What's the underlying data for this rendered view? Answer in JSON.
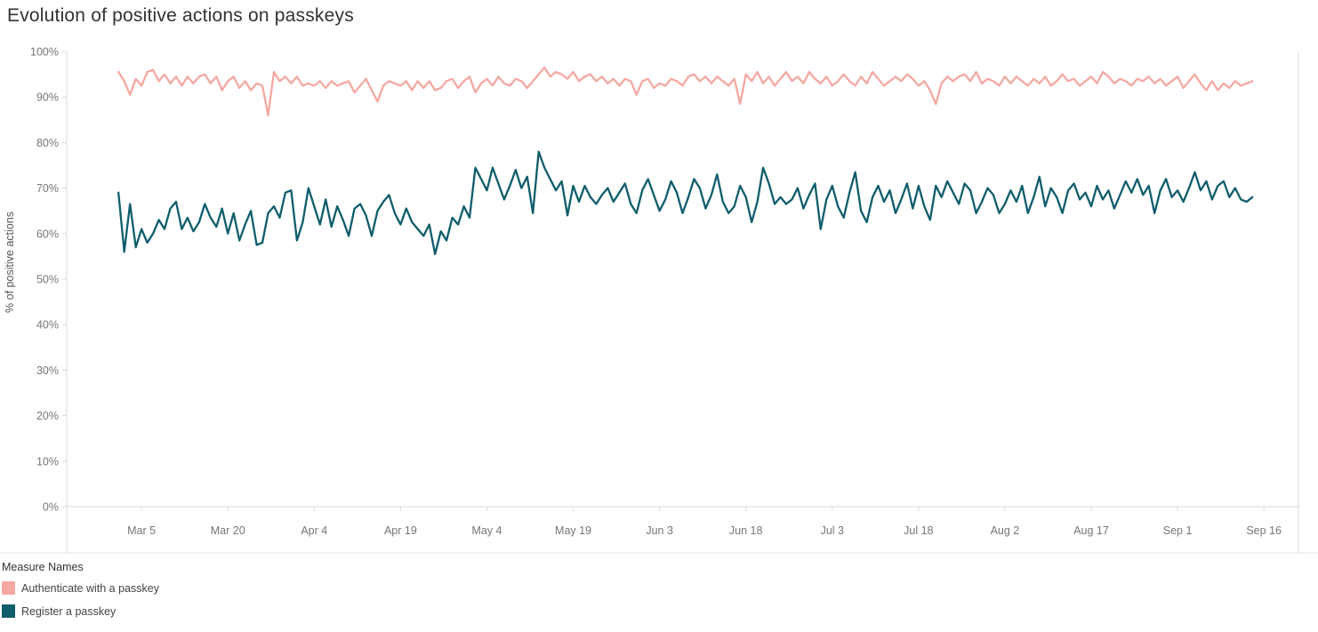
{
  "page": {
    "title": "Evolution of positive actions on passkeys"
  },
  "legend": {
    "title": "Measure Names",
    "items": [
      {
        "label": "Authenticate with a passkey",
        "color": "#f5a8a2"
      },
      {
        "label": "Register a passkey",
        "color": "#0f5d6c"
      }
    ]
  },
  "chart_data": {
    "type": "line",
    "title": "Evolution of positive actions on passkeys",
    "xlabel": "",
    "ylabel": "% of positive actions",
    "ylim": [
      0,
      100
    ],
    "y_ticks": [
      0,
      10,
      20,
      30,
      40,
      50,
      60,
      70,
      80,
      90,
      100
    ],
    "y_tick_suffix": "%",
    "grid": false,
    "legend_position": "bottom-left",
    "x_domain_days": [
      -9,
      205
    ],
    "x_start_date": "Mar 1",
    "x_ticks": [
      {
        "day": 4,
        "label": "Mar 5"
      },
      {
        "day": 19,
        "label": "Mar 20"
      },
      {
        "day": 34,
        "label": "Apr 4"
      },
      {
        "day": 49,
        "label": "Apr 19"
      },
      {
        "day": 64,
        "label": "May 4"
      },
      {
        "day": 79,
        "label": "May 19"
      },
      {
        "day": 94,
        "label": "Jun 3"
      },
      {
        "day": 109,
        "label": "Jun 18"
      },
      {
        "day": 124,
        "label": "Jul 3"
      },
      {
        "day": 139,
        "label": "Jul 18"
      },
      {
        "day": 154,
        "label": "Aug 2"
      },
      {
        "day": 169,
        "label": "Aug 17"
      },
      {
        "day": 184,
        "label": "Sep 1"
      },
      {
        "day": 199,
        "label": "Sep 16"
      }
    ],
    "series": [
      {
        "name": "Authenticate with a passkey",
        "color": "#f5a8a2",
        "start_day": 0,
        "values": [
          95.5,
          93.5,
          90.5,
          94,
          92.5,
          95.5,
          96,
          93.5,
          95,
          93,
          94.5,
          92.5,
          94.5,
          93,
          94.5,
          95,
          93,
          94.5,
          91.5,
          93.5,
          94.5,
          92,
          93.5,
          91.5,
          93,
          92.5,
          86,
          95.5,
          93.5,
          94.5,
          93,
          94.5,
          92.5,
          93,
          92.5,
          93.5,
          92,
          93.5,
          92.5,
          93,
          93.5,
          91,
          92.5,
          94,
          91.5,
          89,
          92.5,
          93.5,
          93,
          92.5,
          93.5,
          91.5,
          93.5,
          92,
          93.5,
          91.5,
          92,
          93.5,
          94,
          92,
          93.5,
          94.5,
          91,
          93,
          94,
          92.5,
          94.5,
          93,
          92.5,
          94,
          93.5,
          92,
          93.5,
          95,
          96.5,
          94.5,
          95.5,
          95,
          94,
          95.5,
          93.5,
          94.5,
          95,
          93.5,
          94.5,
          93,
          94,
          92.5,
          94,
          93.5,
          90.5,
          93.5,
          94,
          92,
          93,
          92.5,
          94,
          93.5,
          92.5,
          94.5,
          95,
          93.5,
          94.5,
          93,
          94.5,
          93.5,
          92.5,
          94,
          88.5,
          95,
          93.5,
          95.5,
          93,
          94.5,
          92.5,
          94,
          95.5,
          93.5,
          94.5,
          93,
          95.5,
          94,
          93,
          94.5,
          92.5,
          93.5,
          95,
          93.5,
          92.5,
          94.5,
          93,
          95.5,
          94,
          92.5,
          93.5,
          94.5,
          93.5,
          95,
          94,
          92.5,
          93.5,
          91.5,
          88.5,
          93,
          94.5,
          93.5,
          94.5,
          95,
          93.5,
          95.5,
          93,
          94,
          93.5,
          92.5,
          94.5,
          93,
          94.5,
          93.5,
          92.5,
          94,
          93,
          94.5,
          92.5,
          93.5,
          95,
          93.5,
          94,
          92.5,
          93.5,
          94.5,
          93,
          95.5,
          94.5,
          93,
          94,
          93.5,
          92.5,
          94,
          93.5,
          94.5,
          93,
          94,
          92.5,
          93.5,
          94.5,
          92,
          93.5,
          95,
          93,
          91.5,
          93.5,
          91.5,
          93,
          92,
          93.5,
          92.5,
          93,
          93.5
        ]
      },
      {
        "name": "Register a passkey",
        "color": "#0f5d6c",
        "start_day": 0,
        "values": [
          69,
          56,
          66.5,
          57,
          61,
          58,
          60,
          63,
          61,
          65.5,
          67,
          61,
          63.5,
          60.5,
          62.5,
          66.5,
          63.5,
          61.5,
          65.5,
          60,
          64.5,
          58.5,
          62,
          65,
          57.5,
          58,
          64.5,
          66,
          63.5,
          69,
          69.5,
          58.5,
          62.5,
          70,
          66,
          62,
          67.5,
          61.5,
          66,
          63,
          59.5,
          65.5,
          66.5,
          64,
          59.5,
          65,
          67,
          68.5,
          64.5,
          62,
          65.5,
          62.5,
          61,
          59.5,
          62,
          55.5,
          60.5,
          58.5,
          63.5,
          62,
          66,
          63.5,
          74.5,
          72,
          69.5,
          74.5,
          71,
          67.5,
          70.5,
          74,
          70,
          72.5,
          64.5,
          78,
          74.5,
          72,
          69.5,
          71.5,
          64,
          70.5,
          67,
          70.5,
          68,
          66.5,
          68.5,
          70,
          67,
          69,
          71,
          66.5,
          64.5,
          69.5,
          72,
          68.5,
          65,
          67.5,
          71.5,
          69,
          64.5,
          68,
          72,
          70,
          65.5,
          68.5,
          73,
          67,
          64.5,
          66,
          70.5,
          68,
          62.5,
          67,
          74.5,
          71,
          66.5,
          68,
          66.5,
          67.5,
          70,
          65.5,
          68.5,
          71,
          61,
          67.5,
          70.5,
          66,
          63.5,
          69,
          73.5,
          65,
          62.5,
          68,
          70.5,
          67,
          69.5,
          64.5,
          67.5,
          71,
          65.5,
          70.5,
          66,
          63,
          70.5,
          68,
          71.5,
          69,
          66.5,
          71,
          69.5,
          64.5,
          67,
          70,
          68.5,
          64.5,
          66.5,
          69.5,
          67,
          70.5,
          64.5,
          68,
          72.5,
          66,
          70,
          68,
          64.5,
          69.5,
          71,
          67.5,
          69,
          66,
          70.5,
          67.5,
          69.5,
          65.5,
          68.5,
          71.5,
          69,
          72,
          68.5,
          70.5,
          64.5,
          69.5,
          72,
          68,
          69.5,
          67,
          70,
          73.5,
          69.5,
          71.5,
          67.5,
          70.5,
          71.5,
          68,
          70,
          67.5,
          67,
          68
        ]
      }
    ]
  }
}
